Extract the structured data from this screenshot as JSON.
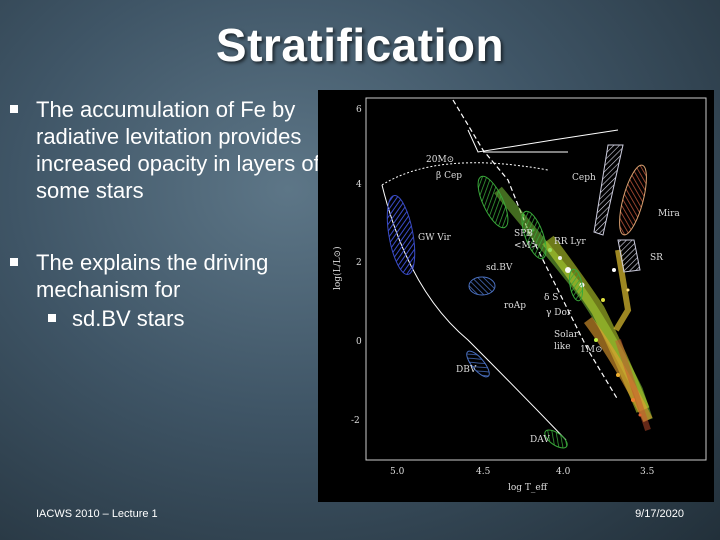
{
  "slide": {
    "title": "Stratification",
    "bullets": [
      {
        "text": "The accumulation of Fe by radiative levitation provides increased opacity in layers of some stars"
      },
      {
        "text": "The explains the driving mechanism for",
        "sub": [
          "sd.BV stars"
        ]
      }
    ],
    "footer_left": "IACWS 2010 – Lecture 1",
    "footer_right": "9/17/2020"
  },
  "diagram": {
    "y_ticks": [
      "6",
      "4",
      "2",
      "0",
      "-2"
    ],
    "x_ticks": [
      "5.0",
      "4.5",
      "4.0",
      "3.5"
    ],
    "y_label": "log(L/L⊙)",
    "x_label": "log T_eff",
    "regions": {
      "m20": "20M⊙",
      "beta_cep": "β Cep",
      "ceph": "Ceph",
      "mira": "Mira",
      "gw_vir": "GW Vir",
      "spb": "SPB",
      "spb_mass": "<M>",
      "rr_lyr": "RR Lyr",
      "sr": "SR",
      "sdbv": "sd.BV",
      "delta_s": "δ S",
      "roap": "roAp",
      "gamma_dor": "γ Dor",
      "solar_like": "Solar-",
      "solar_like2": "like",
      "m1": "1M⊙",
      "dbv": "DBV",
      "dav": "DAV"
    },
    "colors": {
      "blue": "#3a4cc8",
      "green": "#39a83a",
      "red": "#c0553a",
      "beige": "#d8a070"
    }
  }
}
